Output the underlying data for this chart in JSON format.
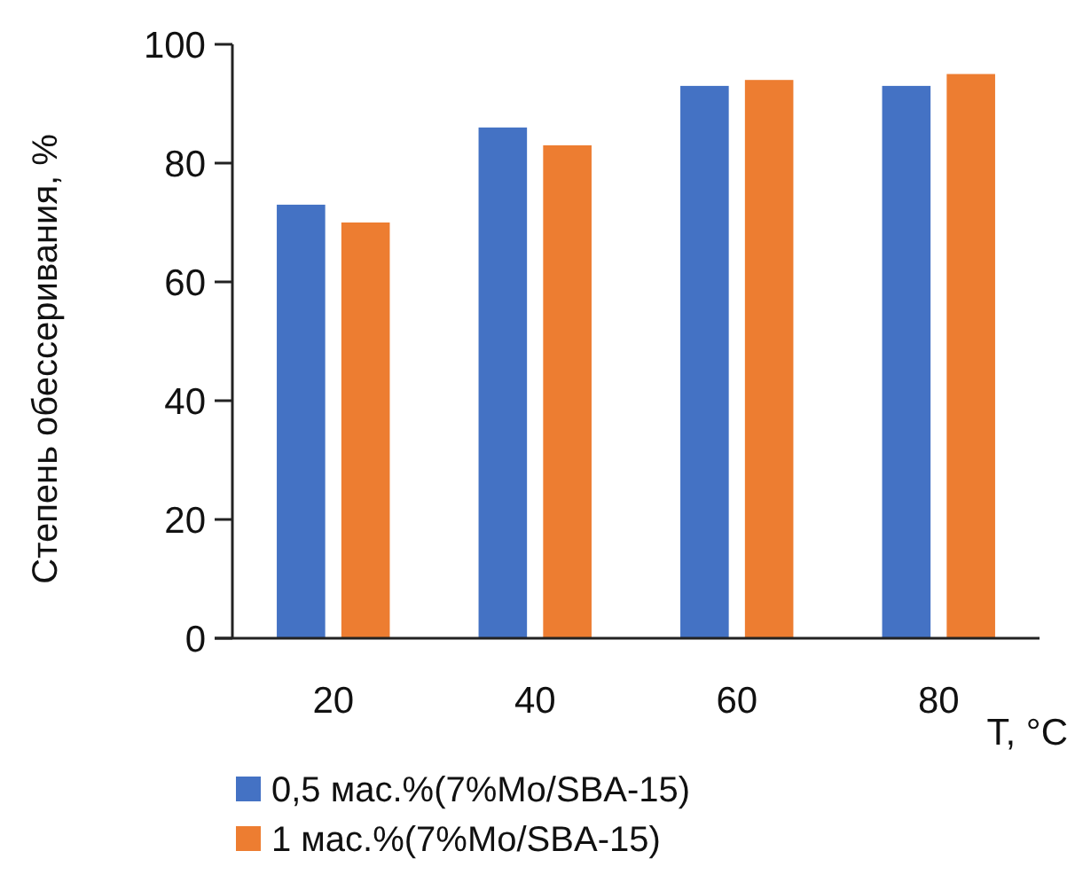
{
  "chart_data": {
    "type": "bar",
    "ylabel": "Степень обессеривания, %",
    "xlabel": "T, °C",
    "categories": [
      "20",
      "40",
      "60",
      "80"
    ],
    "series": [
      {
        "name": "0,5 мас.%(7%Mo/SBA-15)",
        "color": "#4472c4",
        "values": [
          73,
          86,
          93,
          93
        ]
      },
      {
        "name": "1 мас.%(7%Mo/SBA-15)",
        "color": "#ed7d31",
        "values": [
          70,
          83,
          94,
          95
        ]
      }
    ],
    "ylim": [
      0,
      100
    ],
    "yticks": [
      0,
      20,
      40,
      60,
      80,
      100
    ],
    "grid": false,
    "legend": "bottom"
  }
}
